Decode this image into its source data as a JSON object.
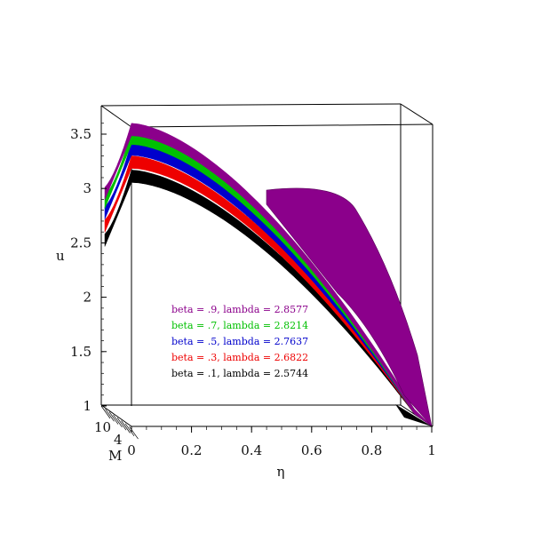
{
  "chart_data": {
    "type": "surface3d",
    "x_axis": {
      "label": "η",
      "ticks": [
        "0",
        "0.2",
        "0.4",
        "0.6",
        "0.8",
        "1"
      ],
      "range": [
        0,
        1
      ]
    },
    "z_axis": {
      "label": "u",
      "ticks": [
        "1",
        "1.5",
        "2",
        "2.5",
        "3",
        "3.5"
      ],
      "range": [
        1,
        3.7
      ]
    },
    "depth_axis": {
      "label": "M",
      "ticks": [
        "10",
        "4"
      ]
    },
    "series": [
      {
        "name": "beta = .9, lambda = 2.8577",
        "beta": 0.9,
        "lambda": 2.8577,
        "color": "#8b008b",
        "peak_u": 3.6
      },
      {
        "name": "beta = .7, lambda = 2.8214",
        "beta": 0.7,
        "lambda": 2.8214,
        "color": "#00c000",
        "peak_u": 3.52
      },
      {
        "name": "beta = .5, lambda = 2.7637",
        "beta": 0.5,
        "lambda": 2.7637,
        "color": "#0000cc",
        "peak_u": 3.42
      },
      {
        "name": "beta = .3, lambda = 2.6822",
        "beta": 0.3,
        "lambda": 2.6822,
        "color": "#ee0000",
        "peak_u": 3.3
      },
      {
        "name": "beta = .1, lambda = 2.5744",
        "beta": 0.1,
        "lambda": 2.5744,
        "color": "#000000",
        "peak_u": 3.17
      }
    ],
    "legend_placement": "center-left",
    "grid": false
  }
}
